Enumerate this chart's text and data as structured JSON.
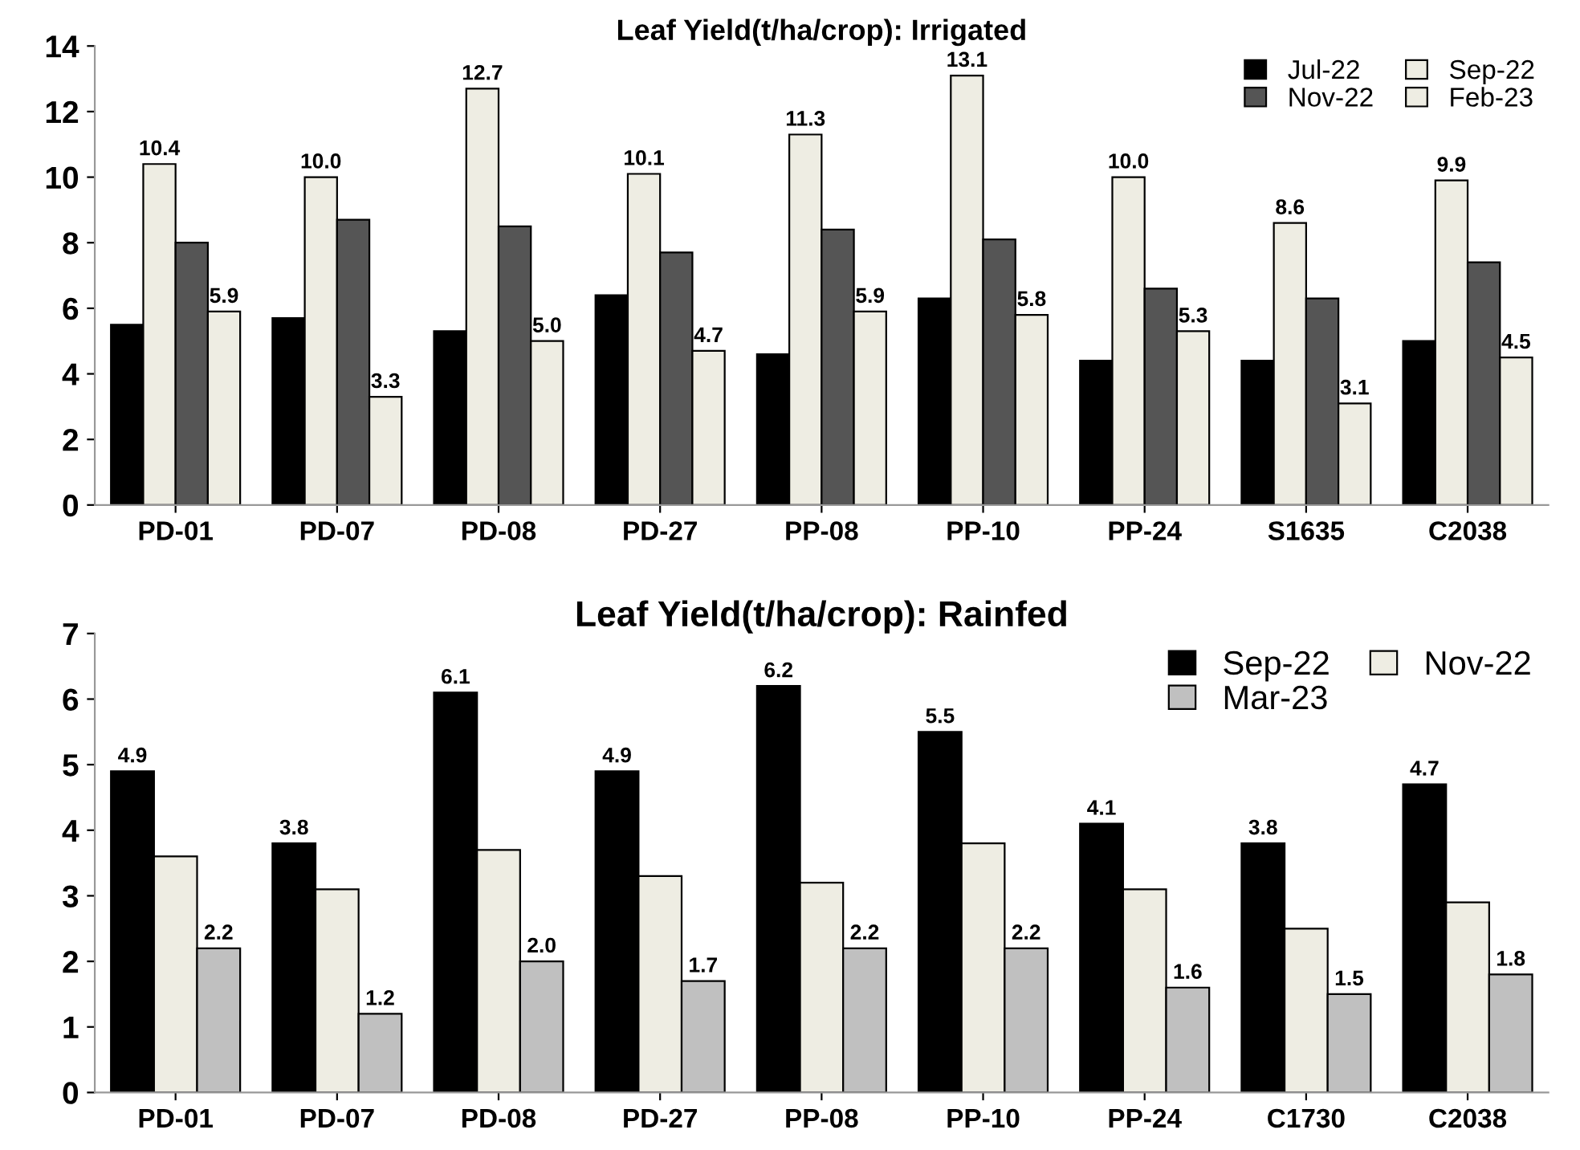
{
  "chart_data": [
    {
      "type": "bar",
      "title": "Leaf Yield(t/ha/crop): Irrigated",
      "categories": [
        "PD-01",
        "PD-07",
        "PD-08",
        "PD-27",
        "PP-08",
        "PP-10",
        "PP-24",
        "S1635",
        "C2038"
      ],
      "series": [
        {
          "name": "Jul-22",
          "color": "#000000",
          "values": [
            5.5,
            5.7,
            5.3,
            6.4,
            4.6,
            6.3,
            4.4,
            4.4,
            5.0
          ]
        },
        {
          "name": "Sep-22",
          "color": "#eeede3",
          "values": [
            10.4,
            10.0,
            12.7,
            10.1,
            11.3,
            13.1,
            10.0,
            8.6,
            9.9
          ],
          "value_labels": [
            "10.4",
            "10.0",
            "12.7",
            "10.1",
            "11.3",
            "13.1",
            "10.0",
            "8.6",
            "9.9"
          ]
        },
        {
          "name": "Nov-22",
          "color": "#555555",
          "values": [
            8.0,
            8.7,
            8.5,
            7.7,
            8.4,
            8.1,
            6.6,
            6.3,
            7.4
          ]
        },
        {
          "name": "Feb-23",
          "color": "#eeede3",
          "values": [
            5.9,
            3.3,
            5.0,
            4.7,
            5.9,
            5.8,
            5.3,
            3.1,
            4.5
          ],
          "value_labels": [
            "5.9",
            "3.3",
            "5.0",
            "4.7",
            "5.9",
            "5.8",
            "5.3",
            "3.1",
            "4.5"
          ]
        }
      ],
      "ylim": [
        0,
        14
      ],
      "yticks": [
        0,
        2,
        4,
        6,
        8,
        10,
        12,
        14
      ],
      "legend": "top right"
    },
    {
      "type": "bar",
      "title": "Leaf Yield(t/ha/crop): Rainfed",
      "categories": [
        "PD-01",
        "PD-07",
        "PD-08",
        "PD-27",
        "PP-08",
        "PP-10",
        "PP-24",
        "C1730",
        "C2038"
      ],
      "series": [
        {
          "name": "Sep-22",
          "color": "#000000",
          "values": [
            4.9,
            3.8,
            6.1,
            4.9,
            6.2,
            5.5,
            4.1,
            3.8,
            4.7
          ],
          "value_labels": [
            "4.9",
            "3.8",
            "6.1",
            "4.9",
            "6.2",
            "5.5",
            "4.1",
            "3.8",
            "4.7"
          ]
        },
        {
          "name": "Nov-22",
          "color": "#eeede3",
          "values": [
            3.6,
            3.1,
            3.7,
            3.3,
            3.2,
            3.8,
            3.1,
            2.5,
            2.9
          ]
        },
        {
          "name": "Mar-23",
          "color": "#c0c0c0",
          "values": [
            2.2,
            1.2,
            2.0,
            1.7,
            2.2,
            2.2,
            1.6,
            1.5,
            1.8
          ],
          "value_labels": [
            "2.2",
            "1.2",
            "2.0",
            "1.7",
            "2.2",
            "2.2",
            "1.6",
            "1.5",
            "1.8"
          ]
        }
      ],
      "ylim": [
        0,
        7
      ],
      "yticks": [
        0,
        1,
        2,
        3,
        4,
        5,
        6,
        7
      ],
      "legend": "top right"
    }
  ]
}
